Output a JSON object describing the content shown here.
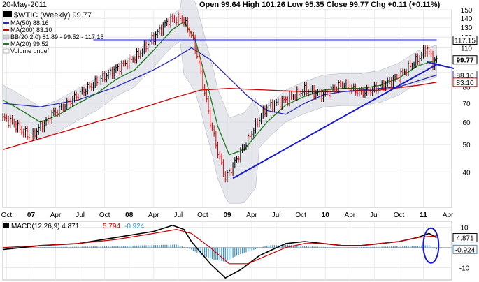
{
  "header": {
    "date": "20-May-2011",
    "ohlc_text": "Open 99.64  High 101.26  Low 95.35  Close 99.77  Chg +0.11 (+0.11%)"
  },
  "legend": {
    "symbol": "$WTIC (Weekly) 99.77",
    "ma50": "MA(50) 88.16",
    "ma200": "MA(200) 83.10",
    "bb": "BB(20,2.0) 81.89 - 99.52 - 117.15",
    "ma20": "MA(20) 99.52",
    "volume": "Volume undef"
  },
  "colors": {
    "price": "#000000",
    "ma50": "#2b2bb5",
    "ma200": "#cc0000",
    "ma20": "#1e7a1e",
    "band": "#cfd4dc",
    "trend": "#1a1acc",
    "macd_hist": "#3a8fd0"
  },
  "chart_data": [
    {
      "type": "line",
      "title": "$WTIC (Weekly)",
      "x_labels": [
        "Oct",
        "07",
        "Apr",
        "Jul",
        "Oct",
        "08",
        "Apr",
        "Jul",
        "Oct",
        "09",
        "Apr",
        "Jul",
        "Oct",
        "10",
        "Apr",
        "Jul",
        "Oct",
        "11",
        "Apr"
      ],
      "y_ticks": [
        40,
        50,
        60,
        70,
        80,
        90,
        110,
        120,
        130,
        140,
        150
      ],
      "ylim": [
        30,
        150
      ],
      "y_scale": "log",
      "price_labels": {
        "last": "99.77",
        "resistance": "117.15",
        "ma50": "88.16",
        "ma200": "83.10"
      },
      "series": [
        {
          "name": "$WTIC",
          "x": [
            0,
            5,
            10,
            15,
            20,
            23,
            26,
            32,
            40,
            48,
            56,
            64,
            72,
            80,
            88,
            95,
            100,
            103,
            106,
            110,
            114,
            118,
            122,
            130,
            140,
            150,
            160,
            170,
            180,
            190,
            200,
            210,
            220,
            225,
            228,
            230
          ],
          "values": [
            62,
            60,
            56,
            53,
            58,
            60,
            64,
            68,
            75,
            82,
            89,
            96,
            104,
            120,
            138,
            140,
            122,
            104,
            82,
            60,
            47,
            38,
            42,
            52,
            68,
            72,
            78,
            75,
            82,
            76,
            80,
            87,
            100,
            110,
            98,
            99.77
          ]
        },
        {
          "name": "MA(50)",
          "x": [
            0,
            20,
            40,
            60,
            80,
            90,
            100,
            110,
            120,
            130,
            140,
            150,
            160,
            170,
            180,
            190,
            200,
            210,
            220,
            230
          ],
          "values": [
            70,
            68,
            72,
            80,
            92,
            100,
            110,
            100,
            86,
            74,
            66,
            64,
            70,
            75,
            77,
            78,
            79,
            80,
            84,
            88.16
          ]
        },
        {
          "name": "MA(200)",
          "x": [
            0,
            30,
            60,
            90,
            105,
            120,
            140,
            160,
            180,
            200,
            220,
            230
          ],
          "values": [
            48,
            55,
            63,
            73,
            78,
            79,
            78,
            77,
            77,
            78,
            81,
            83.1
          ]
        },
        {
          "name": "MA(20)",
          "x": [
            0,
            10,
            20,
            30,
            40,
            50,
            60,
            70,
            80,
            90,
            96,
            102,
            108,
            114,
            120,
            128,
            140,
            150,
            160,
            170,
            180,
            190,
            200,
            210,
            220,
            230
          ],
          "values": [
            72,
            66,
            60,
            64,
            70,
            76,
            85,
            92,
            108,
            128,
            136,
            118,
            84,
            58,
            46,
            48,
            60,
            69,
            74,
            78,
            79,
            79,
            81,
            86,
            95,
            99.52
          ]
        }
      ],
      "trendlines": [
        {
          "x": [
            122,
            230
          ],
          "values": [
            38,
            96
          ]
        },
        {
          "x": [
            48,
            230
          ],
          "values": [
            117.15,
            117.15
          ]
        }
      ]
    },
    {
      "type": "line",
      "title": "MACD(12,26,9)",
      "legend": [
        "MACD(12,26,9) 4.871",
        "5.794",
        "-0.924"
      ],
      "y_ticks": [
        10,
        0,
        -10
      ],
      "ylim": [
        -16,
        13
      ],
      "value_labels": [
        "4.871",
        "-0.924"
      ],
      "series": [
        {
          "name": "MACD",
          "x": [
            0,
            20,
            40,
            60,
            80,
            90,
            96,
            100,
            110,
            118,
            126,
            136,
            150,
            160,
            170,
            180,
            190,
            200,
            210,
            220,
            226,
            230
          ],
          "values": [
            -1,
            1,
            2,
            5,
            8,
            11,
            9,
            3,
            -8,
            -15,
            -11,
            -4,
            2,
            3,
            2,
            1,
            1,
            2,
            3,
            5,
            7,
            4.871
          ]
        },
        {
          "name": "Signal",
          "x": [
            0,
            20,
            40,
            60,
            80,
            92,
            100,
            110,
            120,
            130,
            140,
            150,
            160,
            170,
            180,
            190,
            200,
            210,
            220,
            230
          ],
          "values": [
            0,
            1,
            2,
            4,
            7,
            9,
            7,
            0,
            -8,
            -8,
            -4,
            0,
            2,
            2,
            1,
            1,
            2,
            3,
            5,
            5.794
          ]
        }
      ],
      "histogram": {
        "x": [
          0,
          20,
          40,
          60,
          80,
          92,
          100,
          106,
          112,
          118,
          124,
          130,
          140,
          150,
          160,
          170,
          180,
          190,
          200,
          210,
          220,
          226,
          230
        ],
        "values": [
          -0.5,
          0.2,
          0.4,
          0.8,
          1.2,
          1.5,
          -1,
          -4,
          -6,
          -7,
          -4,
          -2,
          1,
          1.5,
          0.6,
          0.3,
          0,
          0.2,
          0.4,
          0.6,
          0.9,
          1.2,
          -0.924
        ]
      }
    }
  ]
}
